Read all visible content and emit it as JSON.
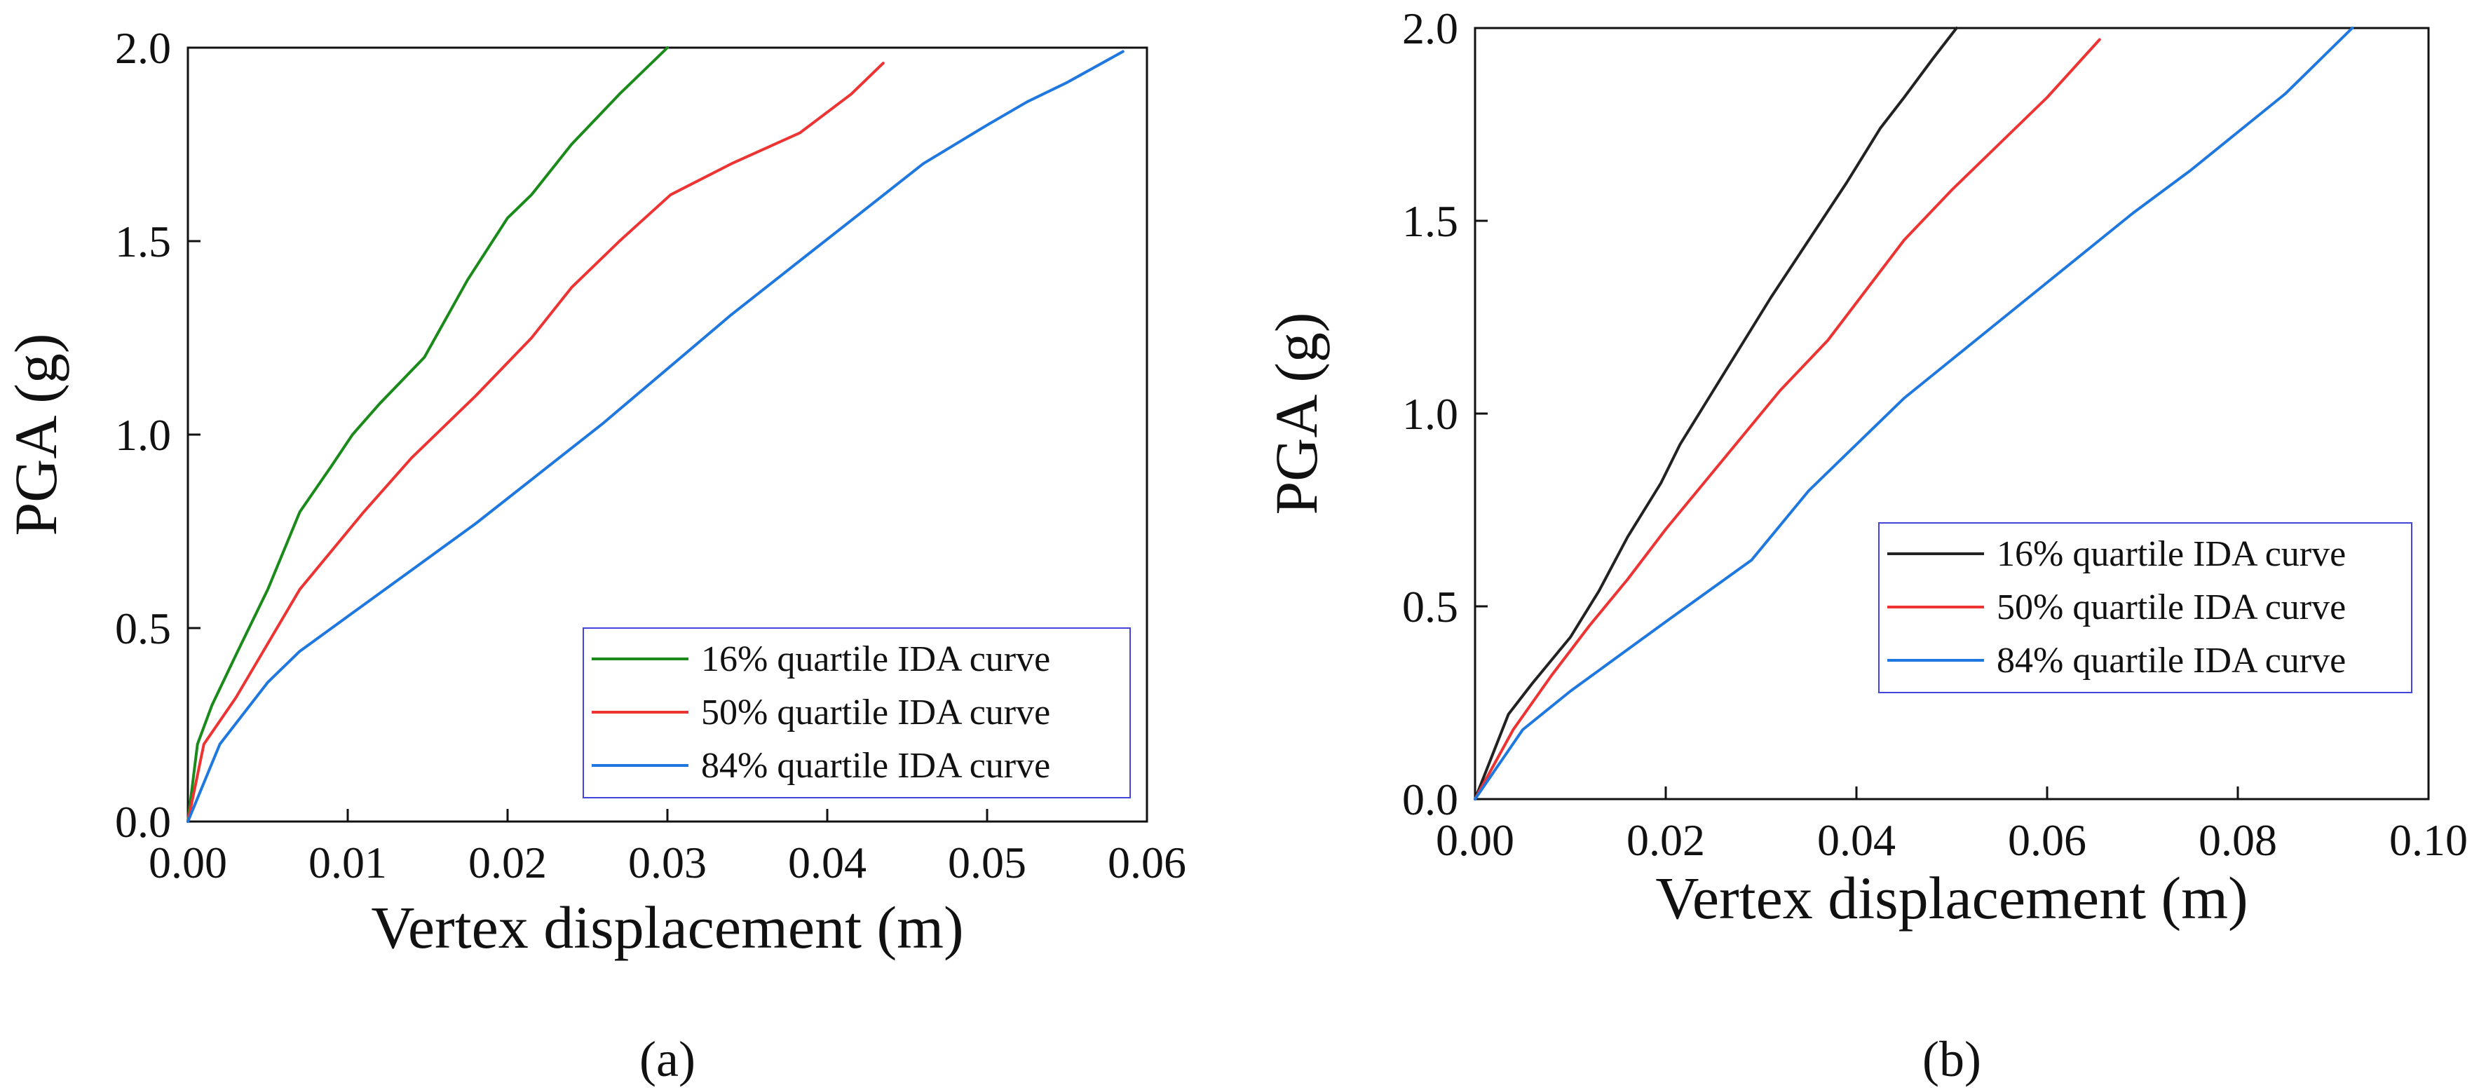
{
  "colors": {
    "green": "#1a8a1a",
    "red": "#ee3333",
    "blue": "#1f78e0",
    "black": "#222222",
    "legend_border": "#4444dd"
  },
  "chart_data": [
    {
      "type": "line",
      "panel_label": "(a)",
      "xlabel": "Vertex displacement (m)",
      "ylabel": "PGA (g)",
      "xlim": [
        0,
        0.06
      ],
      "ylim": [
        0,
        2.0
      ],
      "xticks": [
        "0.00",
        "0.01",
        "0.02",
        "0.03",
        "0.04",
        "0.05",
        "0.06"
      ],
      "yticks": [
        "0.0",
        "0.5",
        "1.0",
        "1.5",
        "2.0"
      ],
      "grid": false,
      "legend_position": "bottom-right",
      "series": [
        {
          "name": "16% quartile IDA curve",
          "color": "#1a8a1a",
          "x": [
            0,
            0.0006,
            0.0015,
            0.003,
            0.005,
            0.007,
            0.009,
            0.0103,
            0.012,
            0.0148,
            0.0175,
            0.02,
            0.0215,
            0.024,
            0.027,
            0.03
          ],
          "y": [
            0,
            0.2,
            0.3,
            0.43,
            0.6,
            0.8,
            0.92,
            1.0,
            1.08,
            1.2,
            1.4,
            1.56,
            1.62,
            1.75,
            1.88,
            2.0
          ]
        },
        {
          "name": "50% quartile IDA curve",
          "color": "#ee3333",
          "x": [
            0,
            0.001,
            0.003,
            0.005,
            0.007,
            0.011,
            0.014,
            0.018,
            0.0215,
            0.024,
            0.027,
            0.0302,
            0.034,
            0.0383,
            0.0415,
            0.0435
          ],
          "y": [
            0,
            0.2,
            0.32,
            0.46,
            0.6,
            0.8,
            0.94,
            1.1,
            1.25,
            1.38,
            1.5,
            1.62,
            1.7,
            1.78,
            1.88,
            1.96
          ]
        },
        {
          "name": "84% quartile IDA curve",
          "color": "#1f78e0",
          "x": [
            0,
            0.002,
            0.005,
            0.007,
            0.01,
            0.014,
            0.018,
            0.022,
            0.026,
            0.03,
            0.034,
            0.038,
            0.042,
            0.046,
            0.05,
            0.0525,
            0.055,
            0.0585
          ],
          "y": [
            0,
            0.2,
            0.36,
            0.44,
            0.53,
            0.65,
            0.77,
            0.9,
            1.03,
            1.17,
            1.31,
            1.44,
            1.57,
            1.7,
            1.8,
            1.86,
            1.91,
            1.99
          ]
        }
      ]
    },
    {
      "type": "line",
      "panel_label": "(b)",
      "xlabel": "Vertex displacement (m)",
      "ylabel": "PGA (g)",
      "xlim": [
        0,
        0.1
      ],
      "ylim": [
        0,
        2.0
      ],
      "xticks": [
        "0.00",
        "0.02",
        "0.04",
        "0.06",
        "0.08",
        "0.10"
      ],
      "yticks": [
        "0.0",
        "0.5",
        "1.0",
        "1.5",
        "2.0"
      ],
      "grid": false,
      "legend_position": "center-right",
      "series": [
        {
          "name": "16% quartile IDA curve",
          "color": "#222222",
          "x": [
            0,
            0.0035,
            0.006,
            0.01,
            0.013,
            0.016,
            0.0195,
            0.0215,
            0.024,
            0.0275,
            0.031,
            0.035,
            0.039,
            0.0425,
            0.045,
            0.048,
            0.0505
          ],
          "y": [
            0,
            0.22,
            0.3,
            0.42,
            0.54,
            0.68,
            0.82,
            0.92,
            1.02,
            1.16,
            1.3,
            1.45,
            1.6,
            1.74,
            1.82,
            1.92,
            2.0
          ]
        },
        {
          "name": "50% quartile IDA curve",
          "color": "#ee3333",
          "x": [
            0,
            0.004,
            0.008,
            0.012,
            0.016,
            0.02,
            0.024,
            0.028,
            0.032,
            0.037,
            0.041,
            0.045,
            0.05,
            0.055,
            0.06,
            0.0655
          ],
          "y": [
            0,
            0.18,
            0.32,
            0.45,
            0.57,
            0.7,
            0.82,
            0.94,
            1.06,
            1.19,
            1.32,
            1.45,
            1.58,
            1.7,
            1.82,
            1.97
          ]
        },
        {
          "name": "84% quartile IDA curve",
          "color": "#1f78e0",
          "x": [
            0,
            0.005,
            0.01,
            0.015,
            0.02,
            0.0245,
            0.029,
            0.035,
            0.04,
            0.045,
            0.05,
            0.055,
            0.06,
            0.065,
            0.069,
            0.075,
            0.08,
            0.085,
            0.092
          ],
          "y": [
            0,
            0.18,
            0.28,
            0.37,
            0.46,
            0.54,
            0.62,
            0.8,
            0.92,
            1.04,
            1.14,
            1.24,
            1.34,
            1.44,
            1.52,
            1.63,
            1.73,
            1.83,
            2.0
          ]
        }
      ]
    }
  ]
}
